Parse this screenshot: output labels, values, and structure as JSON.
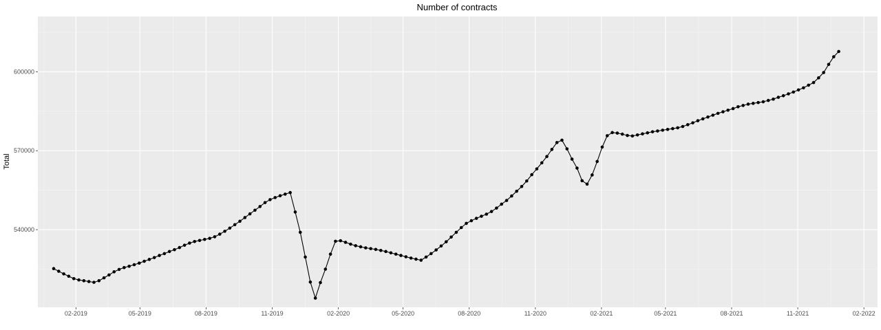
{
  "chart_data": {
    "type": "line",
    "title": "Number of contracts",
    "xlabel": "",
    "ylabel": "Total",
    "x_tick_labels": [
      "02-2019",
      "05-2019",
      "08-2019",
      "11-2019",
      "02-2020",
      "05-2020",
      "08-2020",
      "11-2020",
      "02-2021",
      "05-2021",
      "08-2021",
      "11-2021",
      "02-2022"
    ],
    "x_ticks": [
      "2019-02-01",
      "2019-05-01",
      "2019-08-01",
      "2019-11-01",
      "2020-02-01",
      "2020-05-01",
      "2020-08-01",
      "2020-11-01",
      "2021-02-01",
      "2021-05-01",
      "2021-08-01",
      "2021-11-01",
      "2022-02-01"
    ],
    "y_ticks": [
      540000,
      570000,
      600000
    ],
    "y_tick_labels": [
      "540000",
      "570000",
      "600000"
    ],
    "xlim": [
      "2018-12-10",
      "2022-02-20"
    ],
    "ylim": [
      510500,
      621000
    ],
    "grid": true,
    "colors": {
      "panel": "#ebebeb",
      "grid_major": "#ffffff",
      "grid_minor": "#f5f5f5",
      "line": "#000000"
    },
    "series": [
      {
        "x": [
          "2019-01-01",
          "2019-01-08",
          "2019-01-15",
          "2019-01-22",
          "2019-01-29",
          "2019-02-05",
          "2019-02-12",
          "2019-02-19",
          "2019-02-26",
          "2019-03-05",
          "2019-03-12",
          "2019-03-19",
          "2019-03-26",
          "2019-04-02",
          "2019-04-09",
          "2019-04-16",
          "2019-04-23",
          "2019-04-30",
          "2019-05-07",
          "2019-05-14",
          "2019-05-21",
          "2019-05-28",
          "2019-06-04",
          "2019-06-11",
          "2019-06-18",
          "2019-06-25",
          "2019-07-02",
          "2019-07-09",
          "2019-07-16",
          "2019-07-23",
          "2019-07-30",
          "2019-08-06",
          "2019-08-13",
          "2019-08-20",
          "2019-08-27",
          "2019-09-03",
          "2019-09-10",
          "2019-09-17",
          "2019-09-24",
          "2019-10-01",
          "2019-10-08",
          "2019-10-15",
          "2019-10-22",
          "2019-10-29",
          "2019-11-05",
          "2019-11-12",
          "2019-11-19",
          "2019-11-26",
          "2019-12-03",
          "2019-12-10",
          "2019-12-17",
          "2019-12-24",
          "2019-12-31",
          "2020-01-07",
          "2020-01-14",
          "2020-01-21",
          "2020-01-28",
          "2020-02-04",
          "2020-02-11",
          "2020-02-18",
          "2020-02-25",
          "2020-03-03",
          "2020-03-10",
          "2020-03-17",
          "2020-03-24",
          "2020-03-31",
          "2020-04-07",
          "2020-04-14",
          "2020-04-21",
          "2020-04-28",
          "2020-05-05",
          "2020-05-12",
          "2020-05-19",
          "2020-05-26",
          "2020-06-02",
          "2020-06-09",
          "2020-06-16",
          "2020-06-23",
          "2020-06-30",
          "2020-07-07",
          "2020-07-14",
          "2020-07-21",
          "2020-07-28",
          "2020-08-04",
          "2020-08-11",
          "2020-08-18",
          "2020-08-25",
          "2020-09-01",
          "2020-09-08",
          "2020-09-15",
          "2020-09-22",
          "2020-09-29",
          "2020-10-06",
          "2020-10-13",
          "2020-10-20",
          "2020-10-27",
          "2020-11-03",
          "2020-11-10",
          "2020-11-17",
          "2020-11-24",
          "2020-12-01",
          "2020-12-08",
          "2020-12-15",
          "2020-12-22",
          "2020-12-29",
          "2021-01-05",
          "2021-01-12",
          "2021-01-19",
          "2021-01-26",
          "2021-02-02",
          "2021-02-09",
          "2021-02-16",
          "2021-02-23",
          "2021-03-02",
          "2021-03-09",
          "2021-03-16",
          "2021-03-23",
          "2021-03-30",
          "2021-04-06",
          "2021-04-13",
          "2021-04-20",
          "2021-04-27",
          "2021-05-04",
          "2021-05-11",
          "2021-05-18",
          "2021-05-25",
          "2021-06-01",
          "2021-06-08",
          "2021-06-15",
          "2021-06-22",
          "2021-06-29",
          "2021-07-06",
          "2021-07-13",
          "2021-07-20",
          "2021-07-27",
          "2021-08-03",
          "2021-08-10",
          "2021-08-17",
          "2021-08-24",
          "2021-08-31",
          "2021-09-07",
          "2021-09-14",
          "2021-09-21",
          "2021-09-28",
          "2021-10-05",
          "2021-10-12",
          "2021-10-19",
          "2021-10-26",
          "2021-11-02",
          "2021-11-09",
          "2021-11-16",
          "2021-11-23",
          "2021-11-30",
          "2021-12-07",
          "2021-12-14",
          "2021-12-21",
          "2021-12-28"
        ],
        "y": [
          525200,
          524200,
          523200,
          522300,
          521400,
          520900,
          520600,
          520300,
          520000,
          520600,
          521700,
          522800,
          524000,
          524900,
          525600,
          526100,
          526700,
          527300,
          528000,
          528700,
          529400,
          530200,
          530900,
          531700,
          532400,
          533200,
          534100,
          534900,
          535500,
          535900,
          536300,
          536700,
          537300,
          538300,
          539400,
          540600,
          541900,
          543200,
          544600,
          546000,
          547400,
          548800,
          550300,
          551400,
          552200,
          552900,
          553500,
          554100,
          546700,
          539000,
          529600,
          520100,
          514000,
          519900,
          525000,
          530700,
          535600,
          535800,
          535200,
          534500,
          533900,
          533500,
          533100,
          532800,
          532500,
          532100,
          531700,
          531200,
          530700,
          530200,
          529700,
          529200,
          528800,
          528400,
          529600,
          530900,
          532300,
          533800,
          535400,
          537200,
          539000,
          540800,
          542400,
          543400,
          544300,
          545100,
          545900,
          546900,
          548200,
          549700,
          551100,
          552800,
          554600,
          556400,
          558500,
          560900,
          563100,
          565400,
          567800,
          570500,
          573100,
          574000,
          570700,
          566800,
          563400,
          558600,
          557300,
          560800,
          565900,
          571400,
          575700,
          576900,
          576700,
          576300,
          575800,
          575600,
          576000,
          576400,
          576800,
          577200,
          577500,
          577800,
          578100,
          578400,
          578700,
          579200,
          579900,
          580600,
          581400,
          582100,
          582800,
          583500,
          584200,
          584800,
          585400,
          586000,
          586700,
          587200,
          587700,
          588000,
          588300,
          588600,
          589100,
          589600,
          590300,
          590900,
          591600,
          592300,
          593100,
          593900,
          594900,
          595900,
          597700,
          599700,
          602800,
          605700,
          607700
        ]
      }
    ]
  }
}
